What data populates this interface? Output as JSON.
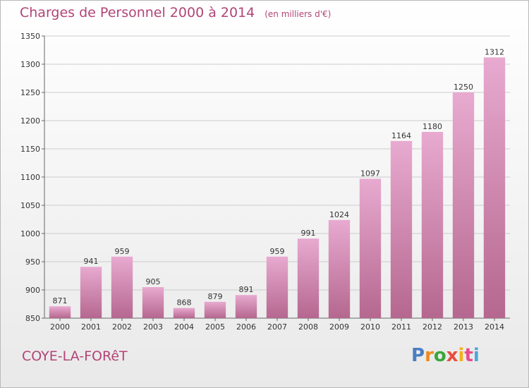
{
  "title": "Charges de Personnel 2000 à 2014",
  "subtitle": "(en milliers d'€)",
  "city": "COYE-LA-FORêT",
  "logo": {
    "letters": [
      "P",
      "r",
      "o",
      "x",
      "i",
      "t",
      "i"
    ],
    "colors": [
      "#4a7fc1",
      "#f08a1c",
      "#3aa63a",
      "#e84c3d",
      "#f0b31c",
      "#e84c8a",
      "#4aa8d8"
    ]
  },
  "colors": {
    "bar_top": "#e8aad0",
    "bar_bottom": "#b5678f",
    "title": "#b24477",
    "grid": "#cccccc"
  },
  "chart_data": {
    "type": "bar",
    "title": "Charges de Personnel 2000 à 2014",
    "subtitle": "(en milliers d'€)",
    "categories": [
      "2000",
      "2001",
      "2002",
      "2003",
      "2004",
      "2005",
      "2006",
      "2007",
      "2008",
      "2009",
      "2010",
      "2011",
      "2012",
      "2013",
      "2014"
    ],
    "values": [
      871,
      941,
      959,
      905,
      868,
      879,
      891,
      959,
      991,
      1024,
      1097,
      1164,
      1180,
      1250,
      1312
    ],
    "ylim": [
      850,
      1350
    ],
    "yticks": [
      850,
      900,
      950,
      1000,
      1050,
      1100,
      1150,
      1200,
      1250,
      1300,
      1350
    ],
    "grid": true
  }
}
